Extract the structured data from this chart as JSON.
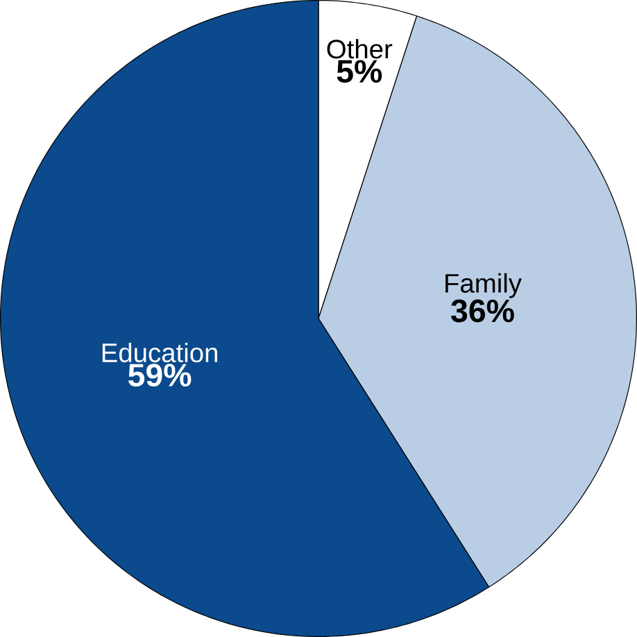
{
  "chart_data": {
    "type": "pie",
    "categories": [
      "Other",
      "Family",
      "Education"
    ],
    "values": [
      5,
      36,
      59
    ],
    "colors": [
      "#ffffff",
      "#b9cde5",
      "#0b4a8c"
    ],
    "value_labels": [
      "5%",
      "36%",
      "59%"
    ]
  }
}
